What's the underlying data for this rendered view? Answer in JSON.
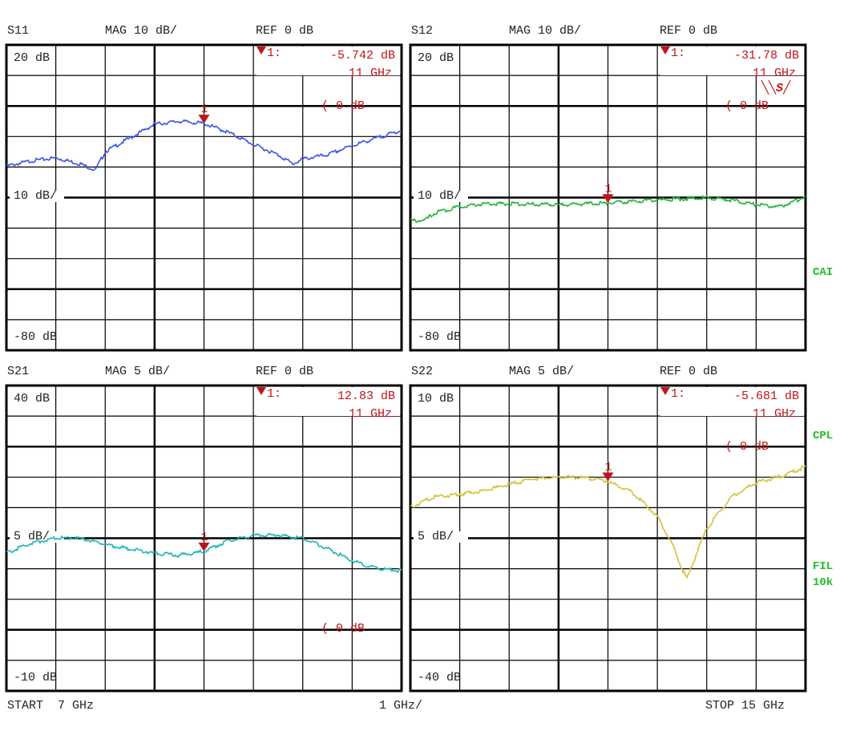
{
  "footer": {
    "start": "START  7 GHz",
    "span": "1 GHz/",
    "stop": "STOP 15 GHz"
  },
  "side_labels": {
    "cal": "CAI",
    "cpl": "CPL",
    "fil": "FIL",
    "fil_value": "10k"
  },
  "colors": {
    "marker": "#c0141b",
    "grid": "#000000",
    "annotation": "#1fbf2a"
  },
  "chart_data": [
    {
      "type": "line",
      "title": "S11",
      "format": "MAG 10 dB/",
      "ref_label": "REF 0 dB",
      "top_label": "20 dB",
      "scale_label": "10 dB/",
      "bottom_label": "-80 dB",
      "ref_marker_label": "( 0 dB",
      "ylim": [
        -80,
        20
      ],
      "xlim": [
        7,
        15
      ],
      "xunit": "GHz",
      "yunit": "dB",
      "grid": true,
      "color": "#3b55e0",
      "marker": {
        "id": "1",
        "label": "1:",
        "value": "-5.742 dB",
        "freq": "11 GHz",
        "x": 11,
        "y": -5.742
      },
      "x": [
        7,
        7.5,
        8,
        8.5,
        8.8,
        9,
        9.5,
        10,
        10.5,
        11,
        11.5,
        12,
        12.5,
        12.8,
        13,
        13.5,
        14,
        14.5,
        15
      ],
      "y": [
        -19.7,
        -18,
        -17,
        -19,
        -21,
        -15,
        -10.5,
        -6,
        -5,
        -5.742,
        -8.7,
        -12.6,
        -16,
        -19,
        -17.4,
        -16,
        -13,
        -10.5,
        -8
      ]
    },
    {
      "type": "line",
      "title": "S12",
      "format": "MAG 10 dB/",
      "ref_label": "REF 0 dB",
      "top_label": "20 dB",
      "scale_label": "10 dB/",
      "bottom_label": "-80 dB",
      "ref_marker_label": "( 0 dB",
      "ylim": [
        -80,
        20
      ],
      "xlim": [
        7,
        15
      ],
      "xunit": "GHz",
      "yunit": "dB",
      "grid": true,
      "color": "#22b33a",
      "marker": {
        "id": "1",
        "label": "1:",
        "value": "-31.78 dB",
        "freq": "11 GHz",
        "x": 11,
        "y": -31.78
      },
      "x": [
        7,
        7.3,
        7.5,
        8,
        8.5,
        9,
        10,
        11,
        12,
        13,
        13.5,
        14,
        14.5,
        15
      ],
      "y": [
        -37.6,
        -37.4,
        -35,
        -33,
        -32,
        -32,
        -32.4,
        -31.78,
        -30.8,
        -30,
        -30.8,
        -32.4,
        -33,
        -29.7
      ]
    },
    {
      "type": "line",
      "title": "S21",
      "format": "MAG 5 dB/",
      "ref_label": "REF 0 dB",
      "top_label": "40 dB",
      "scale_label": "5 dB/",
      "bottom_label": "-10 dB",
      "ref_marker_label": "( 0 dB",
      "ylim": [
        -10,
        40
      ],
      "xlim": [
        7,
        15
      ],
      "xunit": "GHz",
      "yunit": "dB",
      "grid": true,
      "color": "#1fb5b5",
      "marker": {
        "id": "1",
        "label": "1:",
        "value": "12.83 dB",
        "freq": "11 GHz",
        "x": 11,
        "y": 12.83
      },
      "x": [
        7,
        7.5,
        8,
        8.5,
        9,
        9.5,
        10,
        10.5,
        11,
        11.5,
        12,
        12.5,
        13,
        13.5,
        14,
        14.5,
        15
      ],
      "y": [
        12.6,
        14.2,
        15,
        15,
        14,
        13.2,
        12.6,
        12.2,
        12.83,
        14.6,
        15.5,
        15.5,
        15,
        13.3,
        11.3,
        10,
        9.7
      ]
    },
    {
      "type": "line",
      "title": "S22",
      "format": "MAG 5 dB/",
      "ref_label": "REF 0 dB",
      "top_label": "10 dB",
      "scale_label": "5 dB/",
      "bottom_label": "-40 dB",
      "ref_marker_label": "( 0 dB",
      "ylim": [
        -40,
        10
      ],
      "xlim": [
        7,
        15
      ],
      "xunit": "GHz",
      "yunit": "dB",
      "grid": true,
      "color": "#d4c23a",
      "marker": {
        "id": "1",
        "label": "1:",
        "value": "-5.681 dB",
        "freq": "11 GHz",
        "x": 11,
        "y": -5.681
      },
      "x": [
        7,
        7.5,
        8,
        8.5,
        9,
        9.5,
        10,
        10.5,
        11,
        11.5,
        12,
        12.3,
        12.5,
        12.6,
        12.8,
        13,
        13.5,
        14,
        14.5,
        15
      ],
      "y": [
        -9.9,
        -8.2,
        -7.8,
        -7.2,
        -6.2,
        -5.3,
        -5,
        -5.1,
        -5.681,
        -7.5,
        -11.4,
        -16,
        -20,
        -21.6,
        -17.4,
        -13.4,
        -8.2,
        -5.9,
        -4.9,
        -3.3
      ]
    }
  ]
}
